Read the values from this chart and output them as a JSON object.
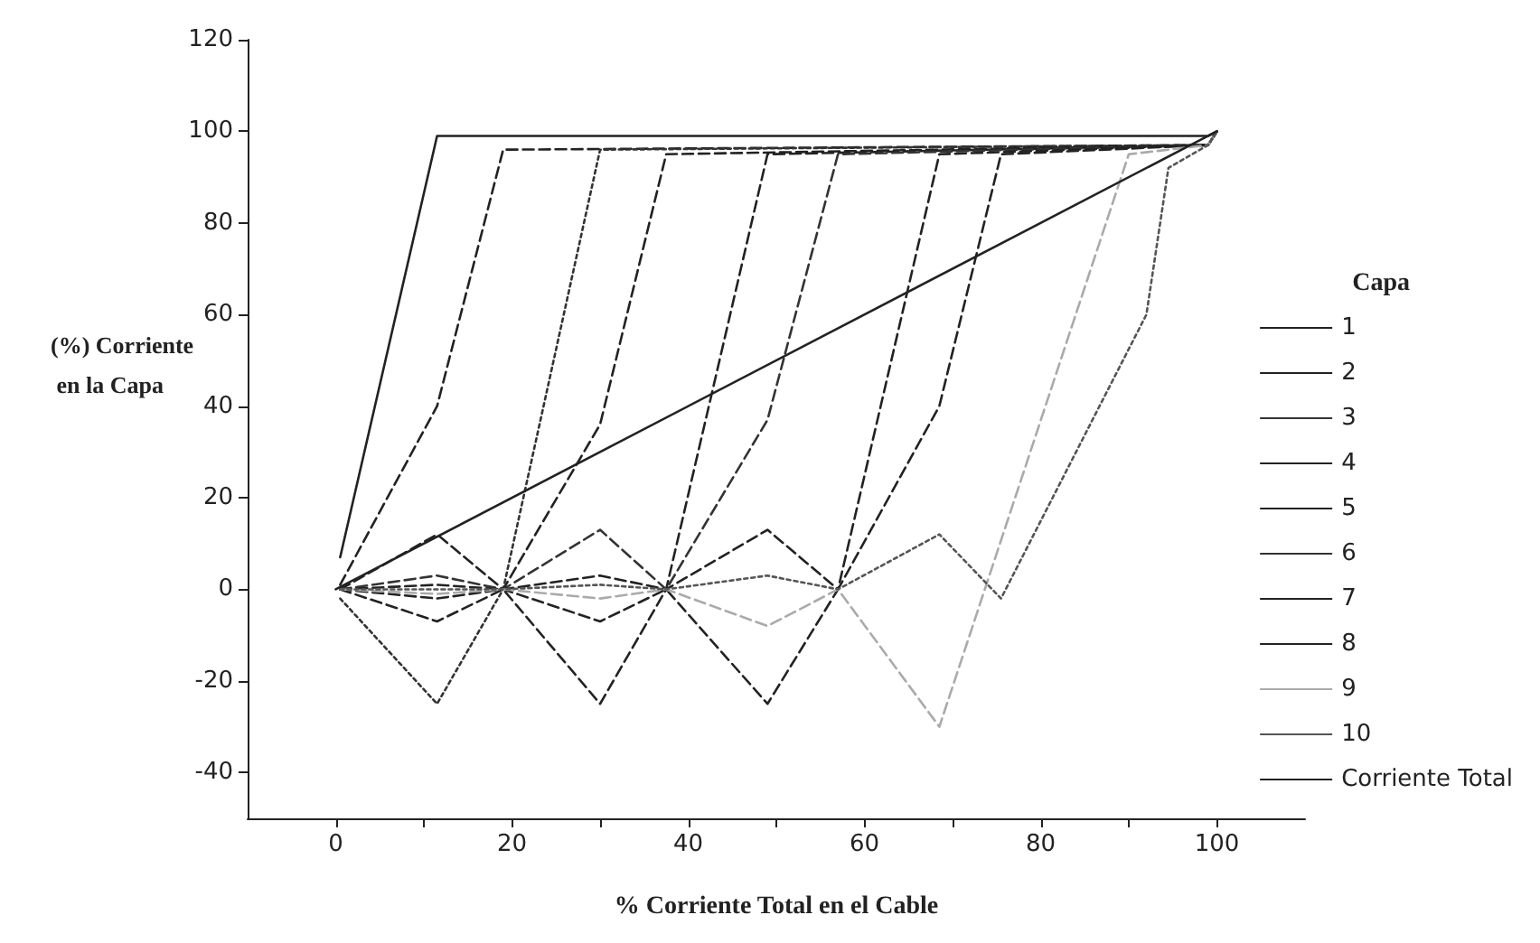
{
  "chart_data": {
    "type": "line",
    "xlabel": "% Corriente Total en el Cable",
    "ylabel": "(%) Corriente en la Capa",
    "legend_title": "Capa",
    "legend": "right",
    "marker": "none",
    "grid": false,
    "xlim": [
      -10,
      110
    ],
    "xticks": [
      0,
      {
        "value": 10,
        "label": null
      },
      20,
      {
        "value": 30,
        "label": null
      },
      40,
      {
        "value": 50,
        "label": null
      },
      60,
      {
        "value": 70,
        "label": null
      },
      80,
      {
        "value": 90,
        "label": null
      },
      100
    ],
    "ylim": [
      -50,
      120
    ],
    "yticks": [
      -40,
      -20,
      0,
      20,
      40,
      60,
      80,
      100,
      120
    ],
    "series": [
      {
        "name": "1",
        "color": "#222222",
        "line_style": "solid",
        "x": [
          0.5,
          11.5,
          99,
          100
        ],
        "values": [
          7,
          99,
          99,
          100
        ]
      },
      {
        "name": "2",
        "color": "#222222",
        "line_style": "dashed",
        "x": [
          0.5,
          11.5,
          19,
          99,
          100
        ],
        "values": [
          1,
          40,
          96,
          97,
          100
        ]
      },
      {
        "name": "3",
        "color": "#333333",
        "line_style": "dotted",
        "x": [
          0.5,
          11.5,
          19,
          30,
          99,
          100
        ],
        "values": [
          -2,
          -25,
          0,
          96,
          97,
          100
        ]
      },
      {
        "name": "4",
        "color": "#222222",
        "line_style": "dashed",
        "x": [
          0.5,
          11.5,
          19,
          30,
          37.5,
          99,
          100
        ],
        "values": [
          0,
          12,
          0,
          36,
          95,
          97,
          100
        ]
      },
      {
        "name": "5",
        "color": "#222222",
        "line_style": "dashed",
        "x": [
          0.5,
          11.5,
          19,
          30,
          37.5,
          49,
          99,
          100
        ],
        "values": [
          0,
          -7,
          0,
          -25,
          0,
          95,
          97,
          100
        ]
      },
      {
        "name": "6",
        "color": "#333333",
        "line_style": "dashed",
        "x": [
          0.5,
          11.5,
          19,
          30,
          37.5,
          49,
          57,
          99,
          100
        ],
        "values": [
          0,
          3,
          0,
          13,
          0,
          37,
          95,
          97,
          100
        ]
      },
      {
        "name": "7",
        "color": "#222222",
        "line_style": "dashed",
        "x": [
          0.5,
          11.5,
          19,
          30,
          37.5,
          49,
          57,
          68.5,
          99,
          100
        ],
        "values": [
          0,
          -2,
          0,
          -7,
          0,
          -25,
          0,
          95,
          97,
          100
        ]
      },
      {
        "name": "8",
        "color": "#222222",
        "line_style": "dashed",
        "x": [
          0.5,
          11.5,
          19,
          30,
          37.5,
          49,
          57,
          68.5,
          75.5,
          99,
          100
        ],
        "values": [
          0,
          1,
          0,
          3,
          0,
          13,
          0,
          40,
          95,
          97,
          100
        ]
      },
      {
        "name": "9",
        "color": "#aaaaaa",
        "line_style": "dashed",
        "x": [
          0.5,
          11.5,
          19,
          30,
          37.5,
          49,
          57,
          68.5,
          90,
          99,
          100
        ],
        "values": [
          0,
          -1,
          0,
          -2,
          0,
          -8,
          0,
          -30,
          95,
          97,
          100
        ]
      },
      {
        "name": "10",
        "color": "#555555",
        "line_style": "dotted",
        "x": [
          0.5,
          11.5,
          19,
          30,
          37.5,
          49,
          57,
          68.5,
          75.5,
          92,
          94.5,
          99,
          100
        ],
        "values": [
          0,
          0,
          0,
          1,
          0,
          3,
          0,
          12,
          -2,
          60,
          92,
          97,
          100
        ]
      },
      {
        "name": "Corriente Total",
        "color": "#222222",
        "line_style": "solid",
        "x": [
          0,
          100
        ],
        "values": [
          0,
          100
        ]
      }
    ]
  }
}
